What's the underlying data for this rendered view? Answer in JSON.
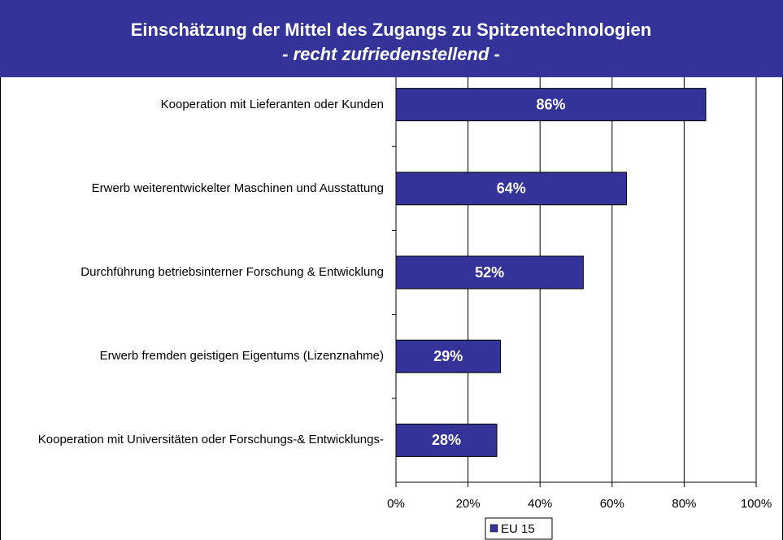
{
  "chart_data": {
    "type": "barh",
    "title": "Einschätzung der Mittel des Zugangs zu Spitzentechnologien",
    "subtitle": "- recht zufriedenstellend -",
    "categories": [
      "Kooperation mit Lieferanten oder Kunden",
      "Erwerb weiterentwickelter Maschinen und Ausstattung",
      "Durchführung betriebsinterner Forschung & Entwicklung",
      "Erwerb fremden geistigen Eigentums (Lizenznahme)",
      "Kooperation mit Universitäten oder Forschungs-& Entwicklungs-"
    ],
    "series": [
      {
        "name": "EU 15",
        "color": "#333399",
        "values": [
          86,
          64,
          52,
          29,
          28
        ],
        "value_labels": [
          "86%",
          "64%",
          "52%",
          "29%",
          "28%"
        ]
      }
    ],
    "xlim": [
      0,
      100
    ],
    "xticks": [
      {
        "value": 0,
        "label": "0%"
      },
      {
        "value": 20,
        "label": "20%"
      },
      {
        "value": 40,
        "label": "40%"
      },
      {
        "value": 60,
        "label": "60%"
      },
      {
        "value": 80,
        "label": "80%"
      },
      {
        "value": 100,
        "label": "100%"
      }
    ],
    "grid": true,
    "legend": "bottom"
  }
}
